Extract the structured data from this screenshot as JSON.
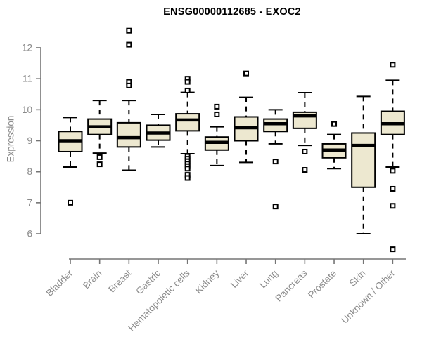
{
  "chart_data": {
    "type": "box",
    "title": "ENSG00000112685 - EXOC2",
    "xlabel": "",
    "ylabel": "Expression",
    "ylim": [
      5.4,
      12.7
    ],
    "yticks": [
      6,
      7,
      8,
      9,
      10,
      11,
      12
    ],
    "grid": false,
    "legend": "none",
    "categories": [
      "Bladder",
      "Brain",
      "Breast",
      "Gastric",
      "Hematopoietic cells",
      "Kidney",
      "Liver",
      "Lung",
      "Pancreas",
      "Prostate",
      "Skin",
      "Unknown / Other"
    ],
    "boxes": [
      {
        "category": "Bladder",
        "whisker_low": 8.15,
        "q1": 8.65,
        "median": 9.0,
        "q3": 9.3,
        "whisker_high": 9.75,
        "outliers": [
          7.0
        ]
      },
      {
        "category": "Brain",
        "whisker_low": 8.6,
        "q1": 9.2,
        "median": 9.45,
        "q3": 9.7,
        "whisker_high": 10.3,
        "outliers": [
          8.47,
          8.24
        ]
      },
      {
        "category": "Breast",
        "whisker_low": 8.05,
        "q1": 8.8,
        "median": 9.1,
        "q3": 9.58,
        "whisker_high": 10.3,
        "outliers": [
          12.55,
          12.1,
          10.9,
          10.78
        ]
      },
      {
        "category": "Gastric",
        "whisker_low": 8.8,
        "q1": 9.02,
        "median": 9.25,
        "q3": 9.5,
        "whisker_high": 9.85,
        "outliers": []
      },
      {
        "category": "Hematopoietic cells",
        "whisker_low": 8.58,
        "q1": 9.32,
        "median": 9.67,
        "q3": 9.87,
        "whisker_high": 10.56,
        "outliers": [
          11.0,
          10.9,
          10.62,
          8.5,
          8.42,
          8.34,
          8.26,
          8.18,
          8.1,
          7.9,
          7.8
        ]
      },
      {
        "category": "Kidney",
        "whisker_low": 8.2,
        "q1": 8.7,
        "median": 8.95,
        "q3": 9.12,
        "whisker_high": 9.45,
        "outliers": [
          10.1,
          9.85
        ]
      },
      {
        "category": "Liver",
        "whisker_low": 8.3,
        "q1": 9.0,
        "median": 9.42,
        "q3": 9.77,
        "whisker_high": 10.4,
        "outliers": [
          11.17
        ]
      },
      {
        "category": "Lung",
        "whisker_low": 8.9,
        "q1": 9.3,
        "median": 9.55,
        "q3": 9.7,
        "whisker_high": 10.0,
        "outliers": [
          8.33,
          6.88
        ]
      },
      {
        "category": "Pancreas",
        "whisker_low": 8.85,
        "q1": 9.4,
        "median": 9.8,
        "q3": 9.92,
        "whisker_high": 10.55,
        "outliers": [
          8.65,
          8.06
        ]
      },
      {
        "category": "Prostate",
        "whisker_low": 8.1,
        "q1": 8.45,
        "median": 8.7,
        "q3": 8.9,
        "whisker_high": 9.2,
        "outliers": [
          9.54
        ]
      },
      {
        "category": "Skin",
        "whisker_low": 6.0,
        "q1": 7.5,
        "median": 8.85,
        "q3": 9.25,
        "whisker_high": 10.43,
        "outliers": []
      },
      {
        "category": "Unknown / Other",
        "whisker_low": 8.15,
        "q1": 9.2,
        "median": 9.55,
        "q3": 9.95,
        "whisker_high": 10.95,
        "outliers": [
          11.45,
          8.03,
          7.45,
          6.9,
          5.5
        ]
      }
    ],
    "colors": {
      "box_fill": "#ede8d0",
      "box_border": "#000000",
      "median": "#000000",
      "whisker": "#000000",
      "outlier_fill": "#ffffff",
      "outlier_border": "#000000",
      "axis_line": "#757575",
      "axis_text": "#8a8a8a",
      "title_text": "#000000",
      "background": "#ffffff"
    }
  }
}
